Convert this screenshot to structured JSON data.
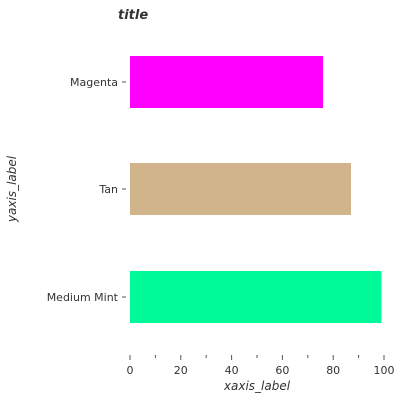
{
  "chart_data": {
    "type": "bar",
    "orientation": "horizontal",
    "title": "title",
    "xlabel": "xaxis_label",
    "ylabel": "yaxis_label",
    "categories": [
      "Medium Mint",
      "Tan",
      "Magenta"
    ],
    "values": [
      99,
      87,
      76
    ],
    "colors": [
      "#00fa9a",
      "#d2b48c",
      "#ff00ff"
    ],
    "xlim": [
      0,
      100
    ],
    "xticks": [
      0,
      20,
      40,
      60,
      80,
      100
    ],
    "xticks_minor": [
      10,
      30,
      50,
      70,
      90
    ],
    "grid": false,
    "legend": "none"
  }
}
